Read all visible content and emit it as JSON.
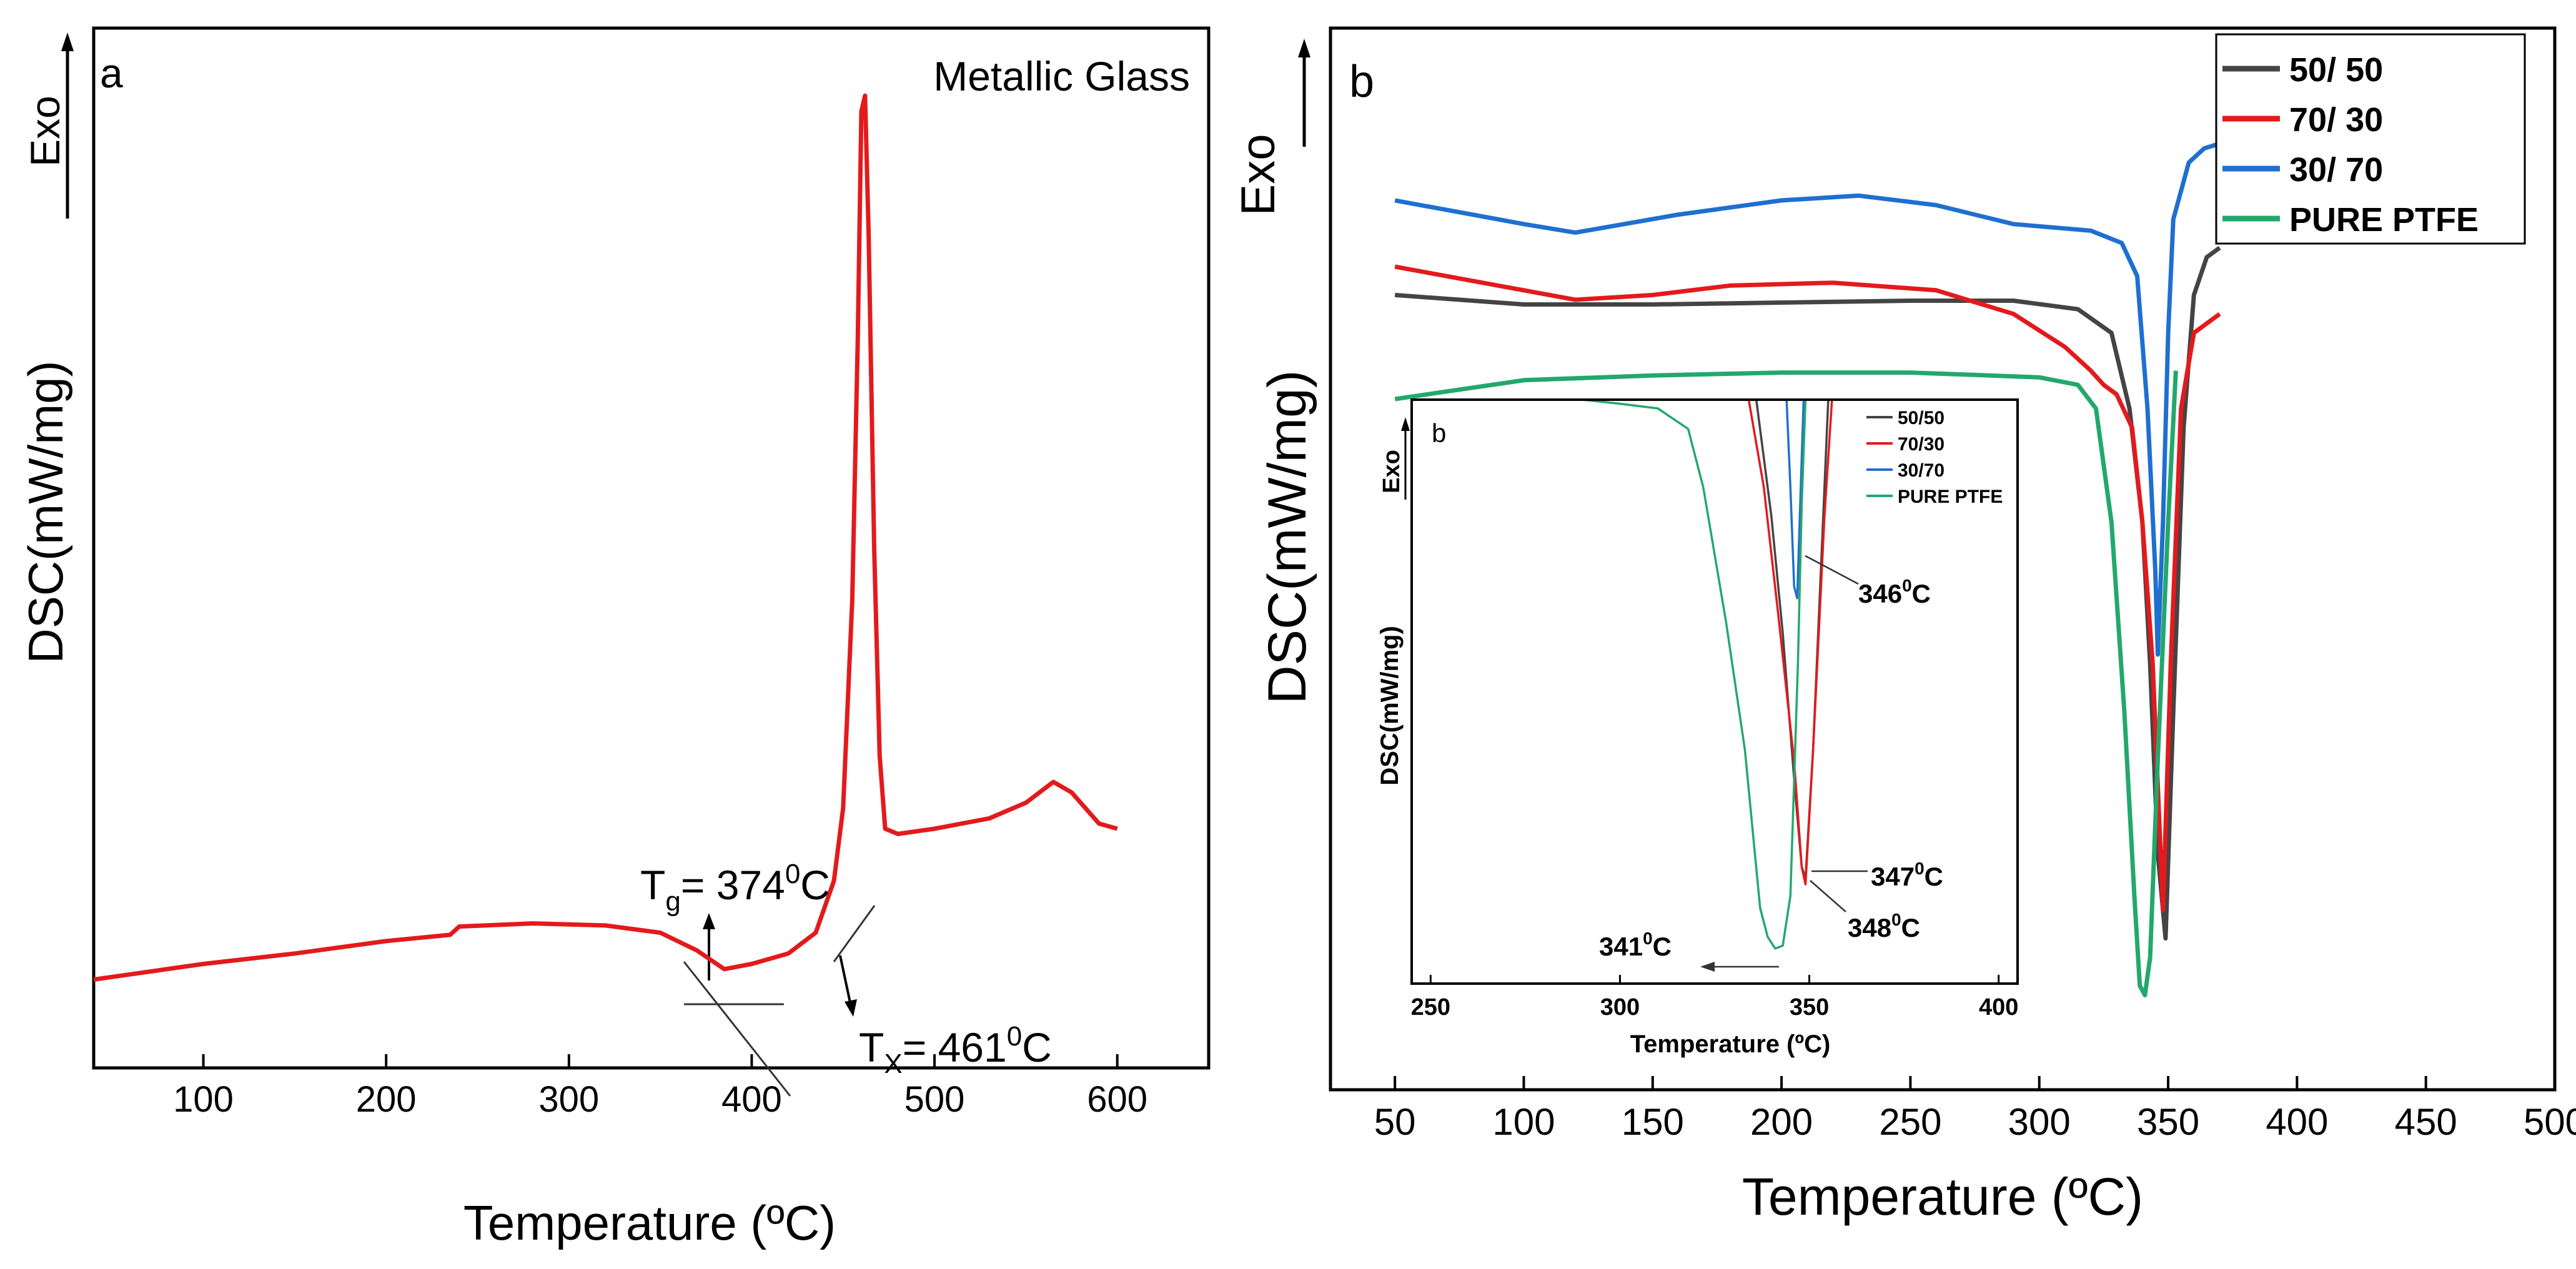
{
  "chart_data": [
    {
      "panel": "a",
      "type": "line",
      "title": "Metallic Glass",
      "xlabel": "Temperature (ºC)",
      "ylabel": "DSC(mW/mg)",
      "y_arrow_label": "Exo",
      "xlim": [
        40,
        650
      ],
      "ylim": [
        0,
        100
      ],
      "x_ticks": [
        100,
        200,
        300,
        400,
        500,
        600
      ],
      "y_ticks_shown": false,
      "series": [
        {
          "name": "Metallic Glass",
          "color": "#e31a1c",
          "points": [
            [
              40,
              8.5
            ],
            [
              60,
              9.0
            ],
            [
              100,
              10.0
            ],
            [
              150,
              11.0
            ],
            [
              200,
              12.2
            ],
            [
              235,
              12.8
            ],
            [
              240,
              13.6
            ],
            [
              280,
              13.9
            ],
            [
              320,
              13.7
            ],
            [
              350,
              13.0
            ],
            [
              370,
              11.3
            ],
            [
              385,
              9.5
            ],
            [
              400,
              10.0
            ],
            [
              420,
              11.0
            ],
            [
              435,
              13.0
            ],
            [
              445,
              18.0
            ],
            [
              450,
              25.0
            ],
            [
              455,
              45.0
            ],
            [
              458,
              70.0
            ],
            [
              460,
              92.0
            ],
            [
              462,
              93.5
            ],
            [
              464,
              80.0
            ],
            [
              467,
              50.0
            ],
            [
              470,
              30.0
            ],
            [
              473,
              23.0
            ],
            [
              480,
              22.5
            ],
            [
              500,
              23.0
            ],
            [
              530,
              24.0
            ],
            [
              550,
              25.5
            ],
            [
              565,
              27.5
            ],
            [
              575,
              26.5
            ],
            [
              590,
              23.5
            ],
            [
              600,
              23.0
            ]
          ]
        }
      ],
      "annotations": [
        {
          "id": "tg",
          "T": "T",
          "sub": "g",
          "text_eq": "= 374",
          "sup": "0",
          "unit": "C",
          "at_x": 374
        },
        {
          "id": "tx",
          "T": "T",
          "sub": "X",
          "text_eq": "= 461",
          "sup": "0",
          "unit": "C",
          "at_x": 461
        }
      ]
    },
    {
      "panel": "b",
      "type": "line",
      "xlabel": "Temperature (ºC)",
      "ylabel": "DSC(mW/mg)",
      "y_arrow_label": "Exo",
      "xlim": [
        25,
        500
      ],
      "ylim": [
        0,
        100
      ],
      "x_ticks": [
        50,
        100,
        150,
        200,
        250,
        300,
        350,
        400,
        450,
        500
      ],
      "y_ticks_shown": false,
      "legend_position": "top-right",
      "series": [
        {
          "name": "50/ 50",
          "color": "#444444",
          "points": [
            [
              50,
              84.0
            ],
            [
              100,
              83.0
            ],
            [
              150,
              83.0
            ],
            [
              200,
              83.2
            ],
            [
              250,
              83.4
            ],
            [
              290,
              83.4
            ],
            [
              315,
              82.5
            ],
            [
              328,
              80.0
            ],
            [
              335,
              72.0
            ],
            [
              340,
              60.0
            ],
            [
              343,
              45.0
            ],
            [
              346,
              25.0
            ],
            [
              349,
              16.0
            ],
            [
              352,
              40.0
            ],
            [
              356,
              70.0
            ],
            [
              360,
              84.0
            ],
            [
              365,
              88.0
            ],
            [
              370,
              89.0
            ]
          ]
        },
        {
          "name": "70/ 30",
          "color": "#e31a1c",
          "points": [
            [
              50,
              87.0
            ],
            [
              80,
              85.5
            ],
            [
              120,
              83.5
            ],
            [
              150,
              84.0
            ],
            [
              180,
              85.0
            ],
            [
              220,
              85.3
            ],
            [
              260,
              84.5
            ],
            [
              290,
              82.0
            ],
            [
              310,
              78.5
            ],
            [
              320,
              76.0
            ],
            [
              325,
              74.5
            ],
            [
              330,
              73.5
            ],
            [
              336,
              70.0
            ],
            [
              340,
              60.0
            ],
            [
              344,
              45.0
            ],
            [
              348,
              19.0
            ],
            [
              351,
              45.0
            ],
            [
              355,
              72.0
            ],
            [
              360,
              80.0
            ],
            [
              370,
              82.0
            ]
          ]
        },
        {
          "name": "30/ 70",
          "color": "#1f6fd1",
          "points": [
            [
              50,
              94.0
            ],
            [
              100,
              91.5
            ],
            [
              120,
              90.6
            ],
            [
              160,
              92.5
            ],
            [
              200,
              94.0
            ],
            [
              230,
              94.5
            ],
            [
              260,
              93.5
            ],
            [
              290,
              91.5
            ],
            [
              320,
              90.8
            ],
            [
              332,
              89.5
            ],
            [
              338,
              86.0
            ],
            [
              342,
              72.0
            ],
            [
              345,
              55.0
            ],
            [
              346,
              46.0
            ],
            [
              348,
              60.0
            ],
            [
              350,
              80.0
            ],
            [
              352,
              92.0
            ],
            [
              358,
              98.0
            ],
            [
              364,
              99.5
            ],
            [
              370,
              100.0
            ]
          ]
        },
        {
          "name": "PURE PTFE",
          "color": "#23a86b",
          "points": [
            [
              50,
              73.0
            ],
            [
              100,
              75.0
            ],
            [
              150,
              75.5
            ],
            [
              200,
              75.8
            ],
            [
              250,
              75.8
            ],
            [
              300,
              75.3
            ],
            [
              315,
              74.5
            ],
            [
              322,
              72.0
            ],
            [
              328,
              60.0
            ],
            [
              333,
              40.0
            ],
            [
              337,
              20.0
            ],
            [
              339,
              11.0
            ],
            [
              341,
              10.0
            ],
            [
              343,
              14.0
            ],
            [
              346,
              35.0
            ],
            [
              350,
              60.0
            ],
            [
              353,
              76.0
            ]
          ]
        }
      ],
      "inset": {
        "panel_label": "b",
        "xlabel": "Temperature (ºC)",
        "ylabel": "DSC(mW/mg)",
        "y_arrow_label": "Exo",
        "xlim": [
          245,
          405
        ],
        "ylim": [
          0,
          100
        ],
        "x_ticks": [
          250,
          300,
          350,
          400
        ],
        "legend": [
          "50/50",
          "70/30",
          "30/70",
          "PURE PTFE"
        ],
        "annotations": [
          {
            "id": "p346",
            "num": "346",
            "sup": "0",
            "unit": "C",
            "at_x": 346
          },
          {
            "id": "p347",
            "num": "347",
            "sup": "0",
            "unit": "C",
            "at_x": 347
          },
          {
            "id": "p348",
            "num": "348",
            "sup": "0",
            "unit": "C",
            "at_x": 348
          },
          {
            "id": "p341",
            "num": "341",
            "sup": "0",
            "unit": "C",
            "at_x": 341
          }
        ],
        "series": [
          {
            "name": "50/50",
            "color": "#444444",
            "points": [
              [
                336,
                100
              ],
              [
                340,
                80
              ],
              [
                343,
                60
              ],
              [
                346,
                35
              ],
              [
                348,
                20
              ],
              [
                349,
                18
              ],
              [
                351,
                40
              ],
              [
                353,
                70
              ],
              [
                355,
                100
              ]
            ]
          },
          {
            "name": "70/30",
            "color": "#e31a1c",
            "points": [
              [
                334,
                100
              ],
              [
                338,
                85
              ],
              [
                342,
                62
              ],
              [
                346,
                38
              ],
              [
                348,
                20
              ],
              [
                349,
                17
              ],
              [
                351,
                40
              ],
              [
                354,
                80
              ],
              [
                356,
                100
              ]
            ]
          },
          {
            "name": "30/70",
            "color": "#1f6fd1",
            "points": [
              [
                344,
                100
              ],
              [
                345,
                85
              ],
              [
                346,
                68
              ],
              [
                346.8,
                66
              ],
              [
                347.5,
                80
              ],
              [
                348.5,
                100
              ]
            ]
          },
          {
            "name": "PURE PTFE",
            "color": "#23a86b",
            "points": [
              [
                245,
                100
              ],
              [
                290,
                100
              ],
              [
                300,
                99.3
              ],
              [
                310,
                98.5
              ],
              [
                318,
                95.0
              ],
              [
                322,
                85.0
              ],
              [
                328,
                62.0
              ],
              [
                333,
                40.0
              ],
              [
                337,
                13.0
              ],
              [
                339,
                8.0
              ],
              [
                341,
                6.0
              ],
              [
                343,
                6.5
              ],
              [
                345,
                15.0
              ],
              [
                347,
                55.0
              ],
              [
                348,
                82.0
              ],
              [
                349,
                100
              ]
            ]
          }
        ]
      }
    }
  ]
}
